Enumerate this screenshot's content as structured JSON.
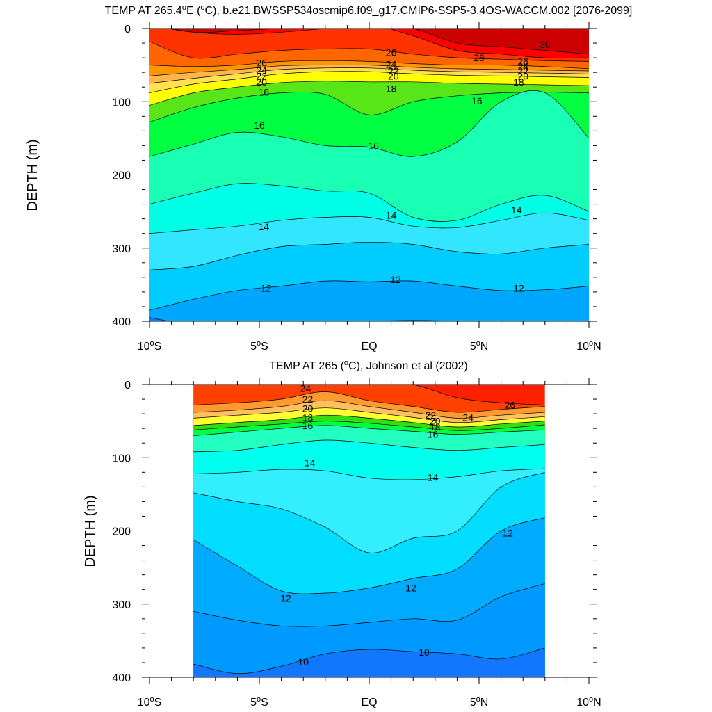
{
  "chart_data": [
    {
      "type": "contour",
      "title_prefix": "TEMP AT 265.4",
      "title_sup1": "o",
      "title_mid": "E (",
      "title_sup2": "o",
      "title_suffix": "C), b.e21.BWSSP534oscmip6.f09_g17.CMIP6-SSP5-3.4OS-WACCM.002 [2076-2099]",
      "ylabel": "DEPTH (m)",
      "xlim": [
        -10,
        10
      ],
      "ylim": [
        0,
        400
      ],
      "data_x_range": [
        -10,
        10
      ],
      "yticks": [
        "0",
        "100",
        "200",
        "300",
        "400"
      ],
      "xticks": [
        {
          "value": -10,
          "main": "10",
          "sup": "o",
          "hemi": "S"
        },
        {
          "value": -5,
          "main": "5",
          "sup": "o",
          "hemi": "S"
        },
        {
          "value": 0,
          "main": "EQ",
          "sup": "",
          "hemi": ""
        },
        {
          "value": 5,
          "main": "5",
          "sup": "o",
          "hemi": "N"
        },
        {
          "value": 10,
          "main": "10",
          "sup": "o",
          "hemi": "N"
        }
      ],
      "x_nodes": [
        -10,
        -8,
        -6,
        -4,
        -2,
        0,
        2,
        4,
        6,
        8,
        10
      ],
      "isotherms": [
        {
          "temp": 29,
          "depth": [
            -5,
            5,
            3,
            0,
            0,
            -5,
            0,
            20,
            25,
            30,
            35
          ]
        },
        {
          "temp": 28,
          "depth": [
            -5,
            5,
            8,
            5,
            0,
            -5,
            10,
            30,
            35,
            40,
            40
          ]
        },
        {
          "temp": 27,
          "depth": [
            18,
            40,
            35,
            30,
            28,
            28,
            35,
            40,
            42,
            44,
            45
          ]
        },
        {
          "temp": 26,
          "depth": [
            50,
            52,
            50,
            45,
            44,
            45,
            48,
            50,
            50,
            52,
            55
          ]
        },
        {
          "temp": 24,
          "depth": [
            65,
            60,
            56,
            51,
            50,
            50,
            53,
            55,
            56,
            57,
            58
          ]
        },
        {
          "temp": 22,
          "depth": [
            75,
            68,
            62,
            56,
            54,
            54,
            57,
            59,
            60,
            61,
            62
          ]
        },
        {
          "temp": 20,
          "depth": [
            88,
            76,
            69,
            62,
            59,
            59,
            62,
            64,
            65,
            66,
            67
          ]
        },
        {
          "temp": 18,
          "depth": [
            105,
            88,
            80,
            74,
            72,
            73,
            73,
            75,
            76,
            77,
            78
          ]
        },
        {
          "temp": 17,
          "depth": [
            128,
            108,
            95,
            88,
            90,
            118,
            100,
            92,
            88,
            87,
            88
          ]
        },
        {
          "temp": 16,
          "depth": [
            175,
            158,
            142,
            148,
            160,
            162,
            175,
            155,
            100,
            88,
            150
          ]
        },
        {
          "temp": 15,
          "depth": [
            240,
            225,
            212,
            215,
            222,
            225,
            258,
            262,
            240,
            228,
            250
          ]
        },
        {
          "temp": 14,
          "depth": [
            280,
            275,
            270,
            262,
            258,
            258,
            270,
            272,
            262,
            252,
            262
          ]
        },
        {
          "temp": 13,
          "depth": [
            330,
            325,
            310,
            298,
            295,
            292,
            295,
            305,
            308,
            300,
            295
          ]
        },
        {
          "temp": 12,
          "depth": [
            385,
            370,
            358,
            352,
            345,
            346,
            345,
            352,
            358,
            357,
            352
          ]
        },
        {
          "temp": 11,
          "depth": [
            395,
            405,
            405,
            405,
            402,
            400,
            399,
            400,
            403,
            405,
            405
          ]
        }
      ],
      "fills": [
        {
          "temp": 29,
          "color": "#FF0000"
        },
        {
          "temp": 28,
          "color": "#FF3300"
        },
        {
          "temp": 27,
          "color": "#FF6600"
        },
        {
          "temp": 26,
          "color": "#FF9500"
        },
        {
          "temp": 24,
          "color": "#FFB74D"
        },
        {
          "temp": 22,
          "color": "#FFE14D"
        },
        {
          "temp": 20,
          "color": "#FFFF00"
        },
        {
          "temp": 18,
          "color": "#59E619"
        },
        {
          "temp": 17,
          "color": "#00FF40"
        },
        {
          "temp": 16,
          "color": "#19FFB3"
        },
        {
          "temp": 15,
          "color": "#00FFE6"
        },
        {
          "temp": 14,
          "color": "#33E6FF"
        },
        {
          "temp": 13,
          "color": "#00CCFF"
        },
        {
          "temp": 12,
          "color": "#00A6FF"
        },
        {
          "temp": 11,
          "color": "#0080FF"
        }
      ],
      "surface_color": "#CC0000",
      "contour_labels": [
        {
          "text": "30",
          "x": 8,
          "y": 22
        },
        {
          "text": "28",
          "x": 5,
          "y": 40
        },
        {
          "text": "26",
          "x": -4.9,
          "y": 47
        },
        {
          "text": "24",
          "x": -4.9,
          "y": 57
        },
        {
          "text": "22",
          "x": -4.9,
          "y": 65
        },
        {
          "text": "20",
          "x": -4.9,
          "y": 73
        },
        {
          "text": "18",
          "x": -4.8,
          "y": 87
        },
        {
          "text": "26",
          "x": 1,
          "y": 33
        },
        {
          "text": "24",
          "x": 1,
          "y": 49
        },
        {
          "text": "22",
          "x": 1.1,
          "y": 58
        },
        {
          "text": "20",
          "x": 1.1,
          "y": 65
        },
        {
          "text": "18",
          "x": 1,
          "y": 82
        },
        {
          "text": "26",
          "x": 7,
          "y": 45
        },
        {
          "text": "24",
          "x": 7,
          "y": 52
        },
        {
          "text": "22",
          "x": 7,
          "y": 58
        },
        {
          "text": "20",
          "x": 7,
          "y": 65
        },
        {
          "text": "18",
          "x": 6.8,
          "y": 73
        },
        {
          "text": "16",
          "x": 4.9,
          "y": 99
        },
        {
          "text": "16",
          "x": -5,
          "y": 132
        },
        {
          "text": "16",
          "x": 0.2,
          "y": 160
        },
        {
          "text": "14",
          "x": -4.8,
          "y": 271
        },
        {
          "text": "14",
          "x": 1,
          "y": 255
        },
        {
          "text": "14",
          "x": 6.7,
          "y": 248
        },
        {
          "text": "12",
          "x": -4.7,
          "y": 355
        },
        {
          "text": "12",
          "x": 1.2,
          "y": 343
        },
        {
          "text": "12",
          "x": 6.8,
          "y": 355
        }
      ]
    },
    {
      "type": "contour",
      "title_prefix": "TEMP AT 265 (",
      "title_sup1": "o",
      "title_mid": "",
      "title_sup2": "",
      "title_suffix": "C), Johnson et al (2002)",
      "ylabel": "DEPTH (m)",
      "xlim": [
        -10,
        10
      ],
      "ylim": [
        0,
        400
      ],
      "data_x_range": [
        -8,
        8
      ],
      "yticks": [
        "0",
        "100",
        "200",
        "300",
        "400"
      ],
      "xticks": [
        {
          "value": -10,
          "main": "10",
          "sup": "o",
          "hemi": "S"
        },
        {
          "value": -5,
          "main": "5",
          "sup": "o",
          "hemi": "S"
        },
        {
          "value": 0,
          "main": "EQ",
          "sup": "",
          "hemi": ""
        },
        {
          "value": 5,
          "main": "5",
          "sup": "o",
          "hemi": "N"
        },
        {
          "value": 10,
          "main": "10",
          "sup": "o",
          "hemi": "N"
        }
      ],
      "x_nodes": [
        -8,
        -6,
        -4,
        -2,
        0,
        2,
        4,
        6,
        8
      ],
      "isotherms": [
        {
          "temp": 26,
          "depth": [
            -5,
            -5,
            -5,
            -5,
            -5,
            0,
            18,
            25,
            28
          ]
        },
        {
          "temp": 24,
          "depth": [
            28,
            25,
            20,
            10,
            22,
            30,
            38,
            34,
            30
          ]
        },
        {
          "temp": 22,
          "depth": [
            38,
            35,
            30,
            22,
            30,
            38,
            46,
            42,
            38
          ]
        },
        {
          "temp": 20,
          "depth": [
            46,
            42,
            38,
            32,
            38,
            45,
            52,
            48,
            44
          ]
        },
        {
          "temp": 18,
          "depth": [
            56,
            52,
            48,
            42,
            46,
            52,
            58,
            54,
            50
          ]
        },
        {
          "temp": 17,
          "depth": [
            62,
            58,
            54,
            50,
            53,
            58,
            63,
            60,
            55
          ]
        },
        {
          "temp": 16,
          "depth": [
            70,
            65,
            60,
            56,
            60,
            64,
            68,
            65,
            62
          ]
        },
        {
          "temp": 15,
          "depth": [
            92,
            90,
            82,
            76,
            80,
            86,
            90,
            86,
            82
          ]
        },
        {
          "temp": 14,
          "depth": [
            122,
            120,
            116,
            118,
            128,
            130,
            126,
            118,
            115
          ]
        },
        {
          "temp": 13,
          "depth": [
            148,
            160,
            170,
            195,
            230,
            210,
            200,
            140,
            120
          ]
        },
        {
          "temp": 12,
          "depth": [
            212,
            248,
            282,
            285,
            278,
            265,
            252,
            200,
            182
          ]
        },
        {
          "temp": 11,
          "depth": [
            310,
            322,
            330,
            330,
            325,
            320,
            322,
            290,
            272
          ]
        },
        {
          "temp": 10,
          "depth": [
            382,
            395,
            385,
            368,
            362,
            365,
            368,
            375,
            360
          ]
        }
      ],
      "fills": [
        {
          "temp": 26,
          "color": "#FF4000"
        },
        {
          "temp": 24,
          "color": "#FF9A30"
        },
        {
          "temp": 22,
          "color": "#FFC060"
        },
        {
          "temp": 20,
          "color": "#FFFF33"
        },
        {
          "temp": 18,
          "color": "#33DD11"
        },
        {
          "temp": 17,
          "color": "#00FF40"
        },
        {
          "temp": 16,
          "color": "#22FFC0"
        },
        {
          "temp": 15,
          "color": "#00FFEE"
        },
        {
          "temp": 14,
          "color": "#33EEFF"
        },
        {
          "temp": 13,
          "color": "#00DDFF"
        },
        {
          "temp": 12,
          "color": "#00AAFF"
        },
        {
          "temp": 11,
          "color": "#0099FF"
        },
        {
          "temp": 10,
          "color": "#1177FF"
        }
      ],
      "surface_color": "#FF2000",
      "contour_labels": [
        {
          "text": "24",
          "x": -2.9,
          "y": 5
        },
        {
          "text": "22",
          "x": -2.8,
          "y": 20
        },
        {
          "text": "20",
          "x": -2.8,
          "y": 33
        },
        {
          "text": "18",
          "x": -2.8,
          "y": 45
        },
        {
          "text": "16",
          "x": -2.8,
          "y": 56
        },
        {
          "text": "14",
          "x": -2.7,
          "y": 107
        },
        {
          "text": "14",
          "x": 2.9,
          "y": 127
        },
        {
          "text": "22",
          "x": 2.8,
          "y": 42
        },
        {
          "text": "20",
          "x": 3,
          "y": 50
        },
        {
          "text": "18",
          "x": 3,
          "y": 58
        },
        {
          "text": "16",
          "x": 2.9,
          "y": 68
        },
        {
          "text": "24",
          "x": 4.5,
          "y": 45
        },
        {
          "text": "26",
          "x": 6.4,
          "y": 28
        },
        {
          "text": "12",
          "x": 6.3,
          "y": 203
        },
        {
          "text": "12",
          "x": 1.9,
          "y": 278
        },
        {
          "text": "12",
          "x": -3.8,
          "y": 292
        },
        {
          "text": "10",
          "x": -3,
          "y": 379
        },
        {
          "text": "10",
          "x": 2.5,
          "y": 366
        }
      ]
    }
  ]
}
